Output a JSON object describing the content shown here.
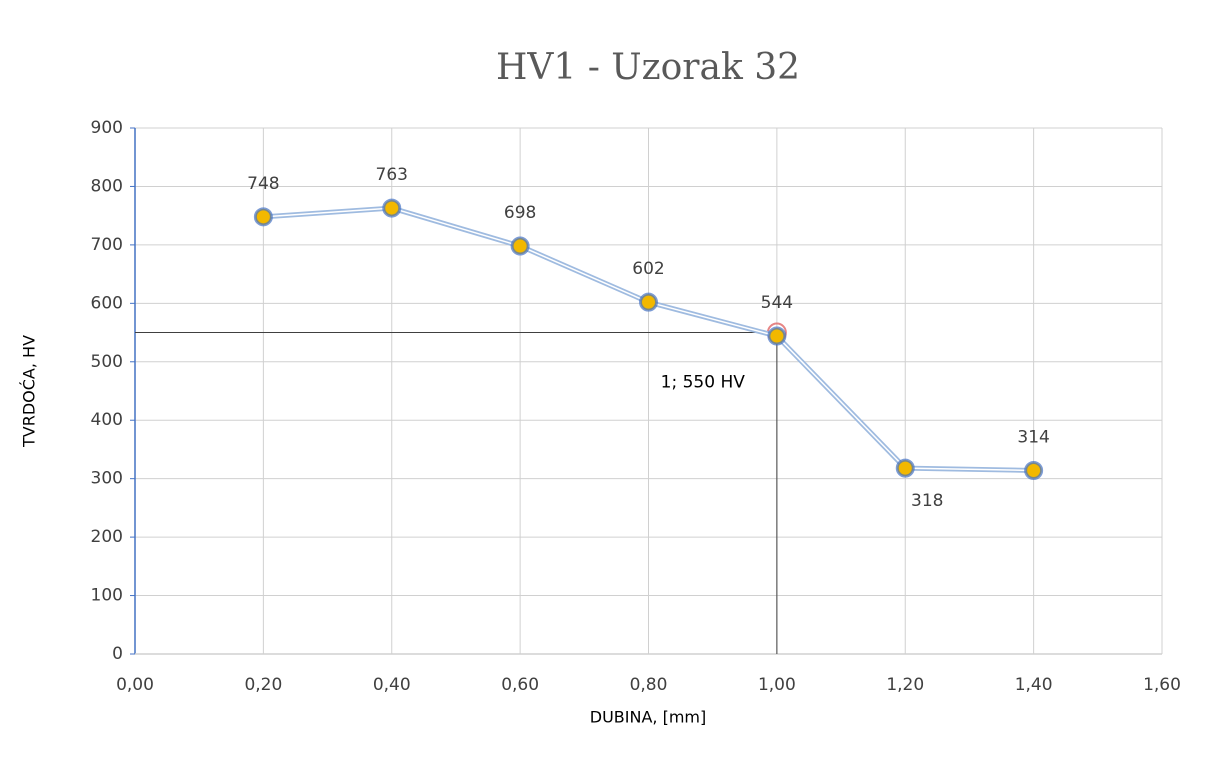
{
  "chart_data": {
    "type": "line",
    "title": "HV1 - Uzorak 32",
    "x_label": "DUBINA, [mm]",
    "y_label": "TVRDOĆA, HV",
    "x": [
      0.2,
      0.4,
      0.6,
      0.8,
      1.0,
      1.2,
      1.4
    ],
    "series": [
      {
        "color": "#4472c4",
        "marker_color": "#f2b800",
        "values": [
          748,
          763,
          698,
          602,
          544,
          318,
          314
        ]
      }
    ],
    "reference": {
      "x": 1,
      "y": 550,
      "label": "1; 550 HV",
      "color": "#e06666"
    },
    "xlim": [
      0,
      1.6
    ],
    "xticks": [
      {
        "value": 0,
        "label": "0,00"
      },
      {
        "value": 0.2,
        "label": "0,20"
      },
      {
        "value": 0.4,
        "label": "0,40"
      },
      {
        "value": 0.6,
        "label": "0,60"
      },
      {
        "value": 0.8,
        "label": "0,80"
      },
      {
        "value": 1.0,
        "label": "1,00"
      },
      {
        "value": 1.2,
        "label": "1,20"
      },
      {
        "value": 1.4,
        "label": "1,40"
      },
      {
        "value": 1.6,
        "label": "1,60"
      }
    ],
    "ylim": [
      0,
      900
    ],
    "yticks": [
      0,
      100,
      200,
      300,
      400,
      500,
      600,
      700,
      800,
      900
    ],
    "grid": true
  }
}
